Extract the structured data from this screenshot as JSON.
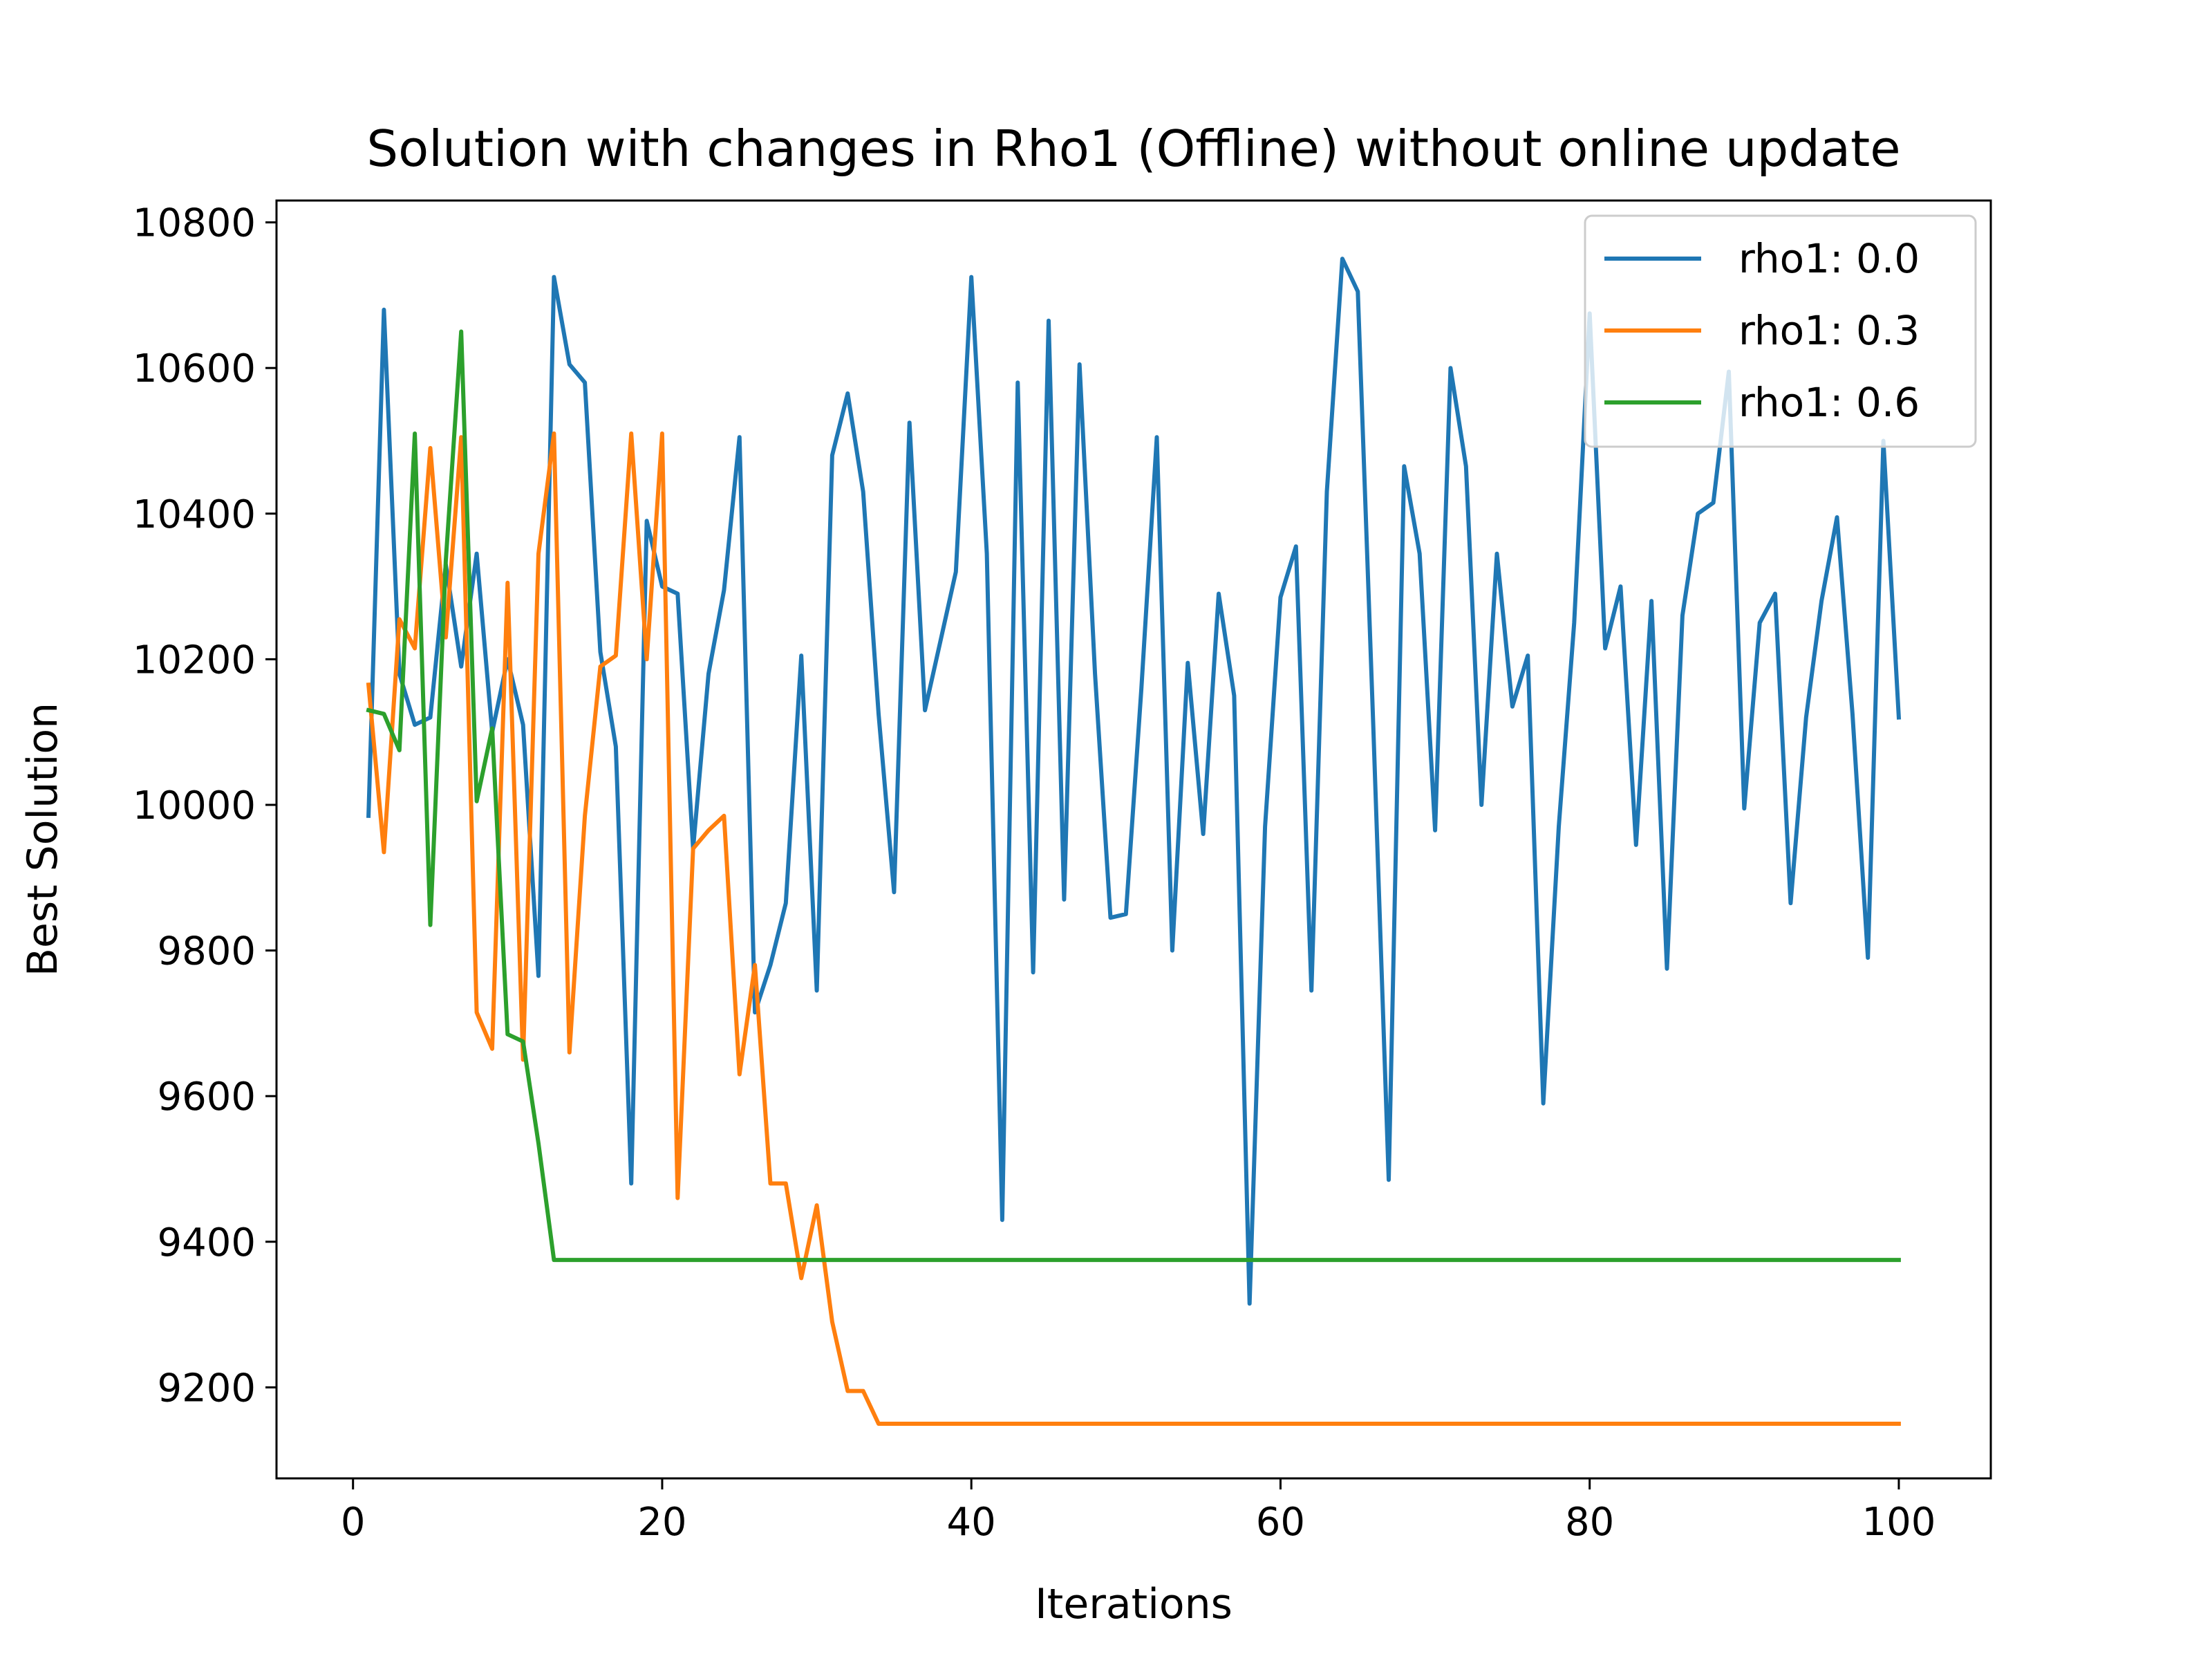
{
  "chart_data": {
    "type": "line",
    "title": "Solution with changes in Rho1 (Offline) without online update",
    "xlabel": "Iterations",
    "ylabel": "Best Solution",
    "xlim": [
      -4.95,
      105.95
    ],
    "ylim": [
      9075,
      10830
    ],
    "xticks": [
      0,
      20,
      40,
      60,
      80,
      100
    ],
    "yticks": [
      9200,
      9400,
      9600,
      9800,
      10000,
      10200,
      10400,
      10600,
      10800
    ],
    "grid": false,
    "legend_position": "top-right",
    "x": [
      1,
      2,
      3,
      4,
      5,
      6,
      7,
      8,
      9,
      10,
      11,
      12,
      13,
      14,
      15,
      16,
      17,
      18,
      19,
      20,
      21,
      22,
      23,
      24,
      25,
      26,
      27,
      28,
      29,
      30,
      31,
      32,
      33,
      34,
      35,
      36,
      37,
      38,
      39,
      40,
      41,
      42,
      43,
      44,
      45,
      46,
      47,
      48,
      49,
      50,
      51,
      52,
      53,
      54,
      55,
      56,
      57,
      58,
      59,
      60,
      61,
      62,
      63,
      64,
      65,
      66,
      67,
      68,
      69,
      70,
      71,
      72,
      73,
      74,
      75,
      76,
      77,
      78,
      79,
      80,
      81,
      82,
      83,
      84,
      85,
      86,
      87,
      88,
      89,
      90,
      91,
      92,
      93,
      94,
      95,
      96,
      97,
      98,
      99,
      100
    ],
    "series": [
      {
        "name": "rho1: 0.0",
        "color": "#1f77b4",
        "values": [
          9985,
          10680,
          10180,
          10110,
          10120,
          10330,
          10190,
          10345,
          10100,
          10200,
          10110,
          9765,
          10725,
          10605,
          10580,
          10210,
          10080,
          9480,
          10390,
          10300,
          10290,
          9940,
          10180,
          10295,
          10505,
          9715,
          9780,
          9865,
          10205,
          9745,
          10480,
          10565,
          10430,
          10125,
          9880,
          10525,
          10130,
          10225,
          10320,
          10725,
          10345,
          9430,
          10580,
          9770,
          10665,
          9870,
          10605,
          10180,
          9845,
          9850,
          10160,
          10505,
          9800,
          10195,
          9960,
          10290,
          10150,
          9315,
          9970,
          10285,
          10355,
          9745,
          10430,
          10750,
          10705,
          10110,
          9485,
          10465,
          10345,
          9965,
          10600,
          10465,
          10000,
          10345,
          10135,
          10205,
          9590,
          9970,
          10250,
          10675,
          10215,
          10300,
          9945,
          10280,
          9775,
          10260,
          10400,
          10415,
          10595,
          9995,
          10250,
          10290,
          9865,
          10120,
          10280,
          10395,
          10125,
          9790,
          10500,
          10120
        ]
      },
      {
        "name": "rho1: 0.3",
        "color": "#ff7f0e",
        "values": [
          10165,
          9935,
          10255,
          10215,
          10490,
          10230,
          10505,
          9715,
          9665,
          10305,
          9650,
          10345,
          10510,
          9660,
          9985,
          10190,
          10205,
          10510,
          10200,
          10510,
          9460,
          9940,
          9965,
          9985,
          9630,
          9780,
          9480,
          9480,
          9350,
          9450,
          9290,
          9195,
          9195,
          9150,
          9150,
          9150,
          9150,
          9150,
          9150,
          9150,
          9150,
          9150,
          9150,
          9150,
          9150,
          9150,
          9150,
          9150,
          9150,
          9150,
          9150,
          9150,
          9150,
          9150,
          9150,
          9150,
          9150,
          9150,
          9150,
          9150,
          9150,
          9150,
          9150,
          9150,
          9150,
          9150,
          9150,
          9150,
          9150,
          9150,
          9150,
          9150,
          9150,
          9150,
          9150,
          9150,
          9150,
          9150,
          9150,
          9150,
          9150,
          9150,
          9150,
          9150,
          9150,
          9150,
          9150,
          9150,
          9150,
          9150,
          9150,
          9150,
          9150,
          9150,
          9150,
          9150,
          9150,
          9150,
          9150,
          9150
        ]
      },
      {
        "name": "rho1: 0.6",
        "color": "#2ca02c",
        "values": [
          10130,
          10125,
          10075,
          10510,
          9835,
          10335,
          10650,
          10005,
          10105,
          9685,
          9675,
          9535,
          9375,
          9375,
          9375,
          9375,
          9375,
          9375,
          9375,
          9375,
          9375,
          9375,
          9375,
          9375,
          9375,
          9375,
          9375,
          9375,
          9375,
          9375,
          9375,
          9375,
          9375,
          9375,
          9375,
          9375,
          9375,
          9375,
          9375,
          9375,
          9375,
          9375,
          9375,
          9375,
          9375,
          9375,
          9375,
          9375,
          9375,
          9375,
          9375,
          9375,
          9375,
          9375,
          9375,
          9375,
          9375,
          9375,
          9375,
          9375,
          9375,
          9375,
          9375,
          9375,
          9375,
          9375,
          9375,
          9375,
          9375,
          9375,
          9375,
          9375,
          9375,
          9375,
          9375,
          9375,
          9375,
          9375,
          9375,
          9375,
          9375,
          9375,
          9375,
          9375,
          9375,
          9375,
          9375,
          9375,
          9375,
          9375,
          9375,
          9375,
          9375,
          9375,
          9375,
          9375,
          9375,
          9375,
          9375,
          9375
        ]
      }
    ]
  }
}
